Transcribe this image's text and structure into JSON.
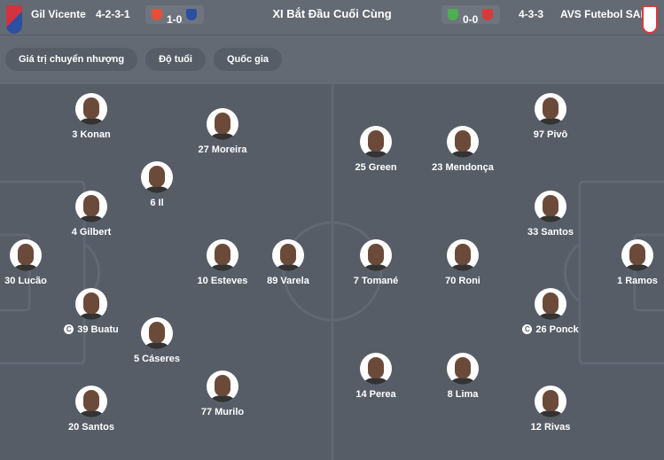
{
  "header": {
    "home": {
      "name": "Gil Vicente",
      "formation": "4-2-3-1",
      "last_score": "1-0",
      "color": "#d3323f"
    },
    "title": "XI Bắt Đầu Cuối Cùng",
    "away": {
      "name": "AVS Futebol SAD",
      "formation": "4-3-3",
      "last_score": "0-0",
      "color": "#d83a3a"
    }
  },
  "filters": [
    "Giá trị chuyển nhượng",
    "Độ tuổi",
    "Quốc gia"
  ],
  "captain_icon": "C",
  "home_players": [
    {
      "label": "3 Konan"
    },
    {
      "label": "27 Moreira"
    },
    {
      "label": "6 Il"
    },
    {
      "label": "4 Gilbert"
    },
    {
      "label": "30 Lucão"
    },
    {
      "label": "10 Esteves"
    },
    {
      "label": "89 Varela"
    },
    {
      "label": "39 Buatu",
      "captain": true
    },
    {
      "label": "5 Cáseres"
    },
    {
      "label": "20 Santos"
    },
    {
      "label": "77 Murilo"
    }
  ],
  "away_players": [
    {
      "label": "97 Pivô"
    },
    {
      "label": "25 Green"
    },
    {
      "label": "23 Mendonça"
    },
    {
      "label": "33 Santos"
    },
    {
      "label": "7 Tomané"
    },
    {
      "label": "70 Roni"
    },
    {
      "label": "1 Ramos"
    },
    {
      "label": "26 Ponck",
      "captain": true
    },
    {
      "label": "14 Perea"
    },
    {
      "label": "8 Lima"
    },
    {
      "label": "12 Rivas"
    }
  ]
}
